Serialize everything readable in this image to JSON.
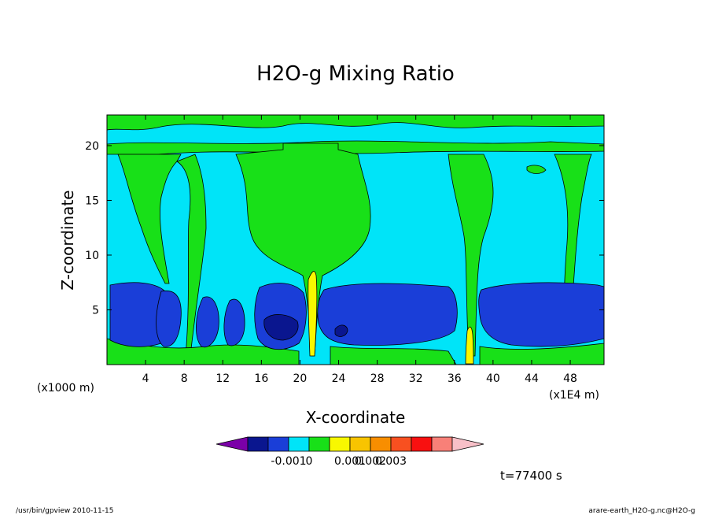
{
  "chart_data": {
    "type": "heatmap",
    "title": "H2O-g Mixing Ratio",
    "xlabel": "X-coordinate",
    "ylabel": "Z-coordinate",
    "x_unit_left": "(x1000 m)",
    "x_unit_right": "(x1E4 m)",
    "xlim": [
      0,
      51.5
    ],
    "ylim": [
      0,
      22.8
    ],
    "x_ticks": [
      4,
      8,
      12,
      16,
      20,
      24,
      28,
      32,
      36,
      40,
      44,
      48
    ],
    "y_ticks": [
      5,
      10,
      15,
      20
    ],
    "grid": false,
    "colorbar": {
      "colors": [
        "#7b00a8",
        "#0a168f",
        "#1a3ed8",
        "#00e4f8",
        "#18e018",
        "#f8f800",
        "#f8c400",
        "#f88e00",
        "#f85020",
        "#f81010",
        "#f88078",
        "#f8c0c8"
      ],
      "tick_labels": [
        "-0.001",
        "0",
        "0.001",
        "0.002",
        "0.003"
      ]
    },
    "levels": {
      "background": "#00e4f8",
      "moist_layer": "#18e018",
      "low_dry": "#1a3ed8",
      "very_dry": "#0a168f",
      "updraft": "#f8f800"
    }
  },
  "time_label": "t=77400 s",
  "footer": {
    "left": "/usr/bin/gpview   2010-11-15",
    "right": "arare-earth_H2O-g.nc@H2O-g"
  }
}
